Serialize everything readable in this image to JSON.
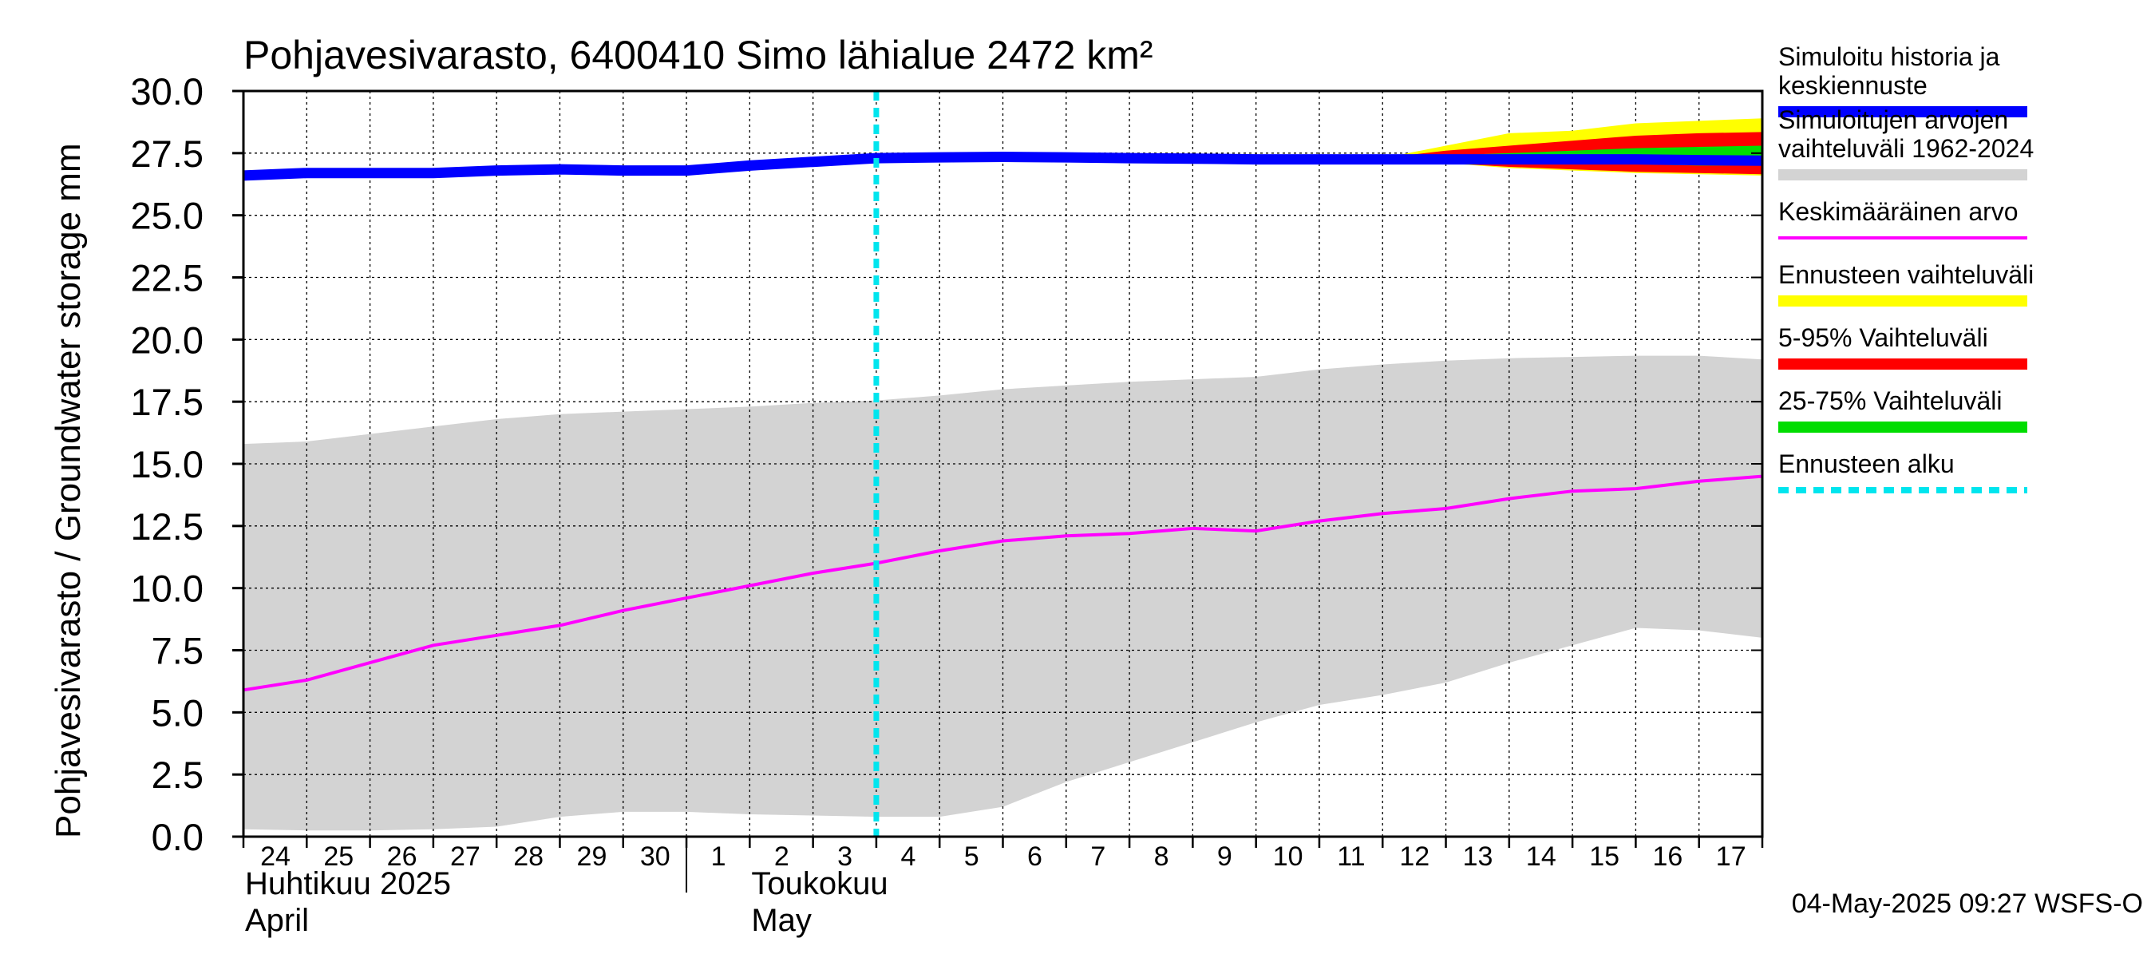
{
  "chart_data": {
    "type": "area",
    "title": "Pohjavesivarasto, 6400410 Simo lähialue 2472 km²",
    "ylabel": "Pohjavesivarasto / Groundwater storage   mm",
    "ylim": [
      0,
      30
    ],
    "ytick_values": [
      0,
      2.5,
      5,
      7.5,
      10,
      12.5,
      15,
      17.5,
      20,
      22.5,
      25,
      27.5,
      30
    ],
    "ytick_labels": [
      "0.0",
      "2.5",
      "5.0",
      "7.5",
      "10.0",
      "12.5",
      "15.0",
      "17.5",
      "20.0",
      "22.5",
      "25.0",
      "27.5",
      "30.0"
    ],
    "xlim": [
      0,
      24
    ],
    "x_day_labels": [
      "24",
      "25",
      "26",
      "27",
      "28",
      "29",
      "30",
      "1",
      "2",
      "3",
      "4",
      "5",
      "6",
      "7",
      "8",
      "9",
      "10",
      "11",
      "12",
      "13",
      "14",
      "15",
      "16",
      "17"
    ],
    "month_labels": [
      {
        "fi": "Huhtikuu  2025",
        "en": "April",
        "x": 0
      },
      {
        "fi": "Toukokuu",
        "en": "May",
        "x": 8
      }
    ],
    "month_separator_x": 7,
    "forecast_start_x": 10,
    "history_range": {
      "x": [
        0,
        1,
        2,
        3,
        4,
        5,
        6,
        7,
        8,
        9,
        10,
        11,
        12,
        13,
        14,
        15,
        16,
        17,
        18,
        19,
        20,
        21,
        22,
        23,
        24
      ],
      "upper": [
        15.8,
        15.9,
        16.2,
        16.5,
        16.8,
        17.0,
        17.1,
        17.2,
        17.3,
        17.45,
        17.55,
        17.75,
        18.0,
        18.15,
        18.3,
        18.4,
        18.5,
        18.8,
        19.0,
        19.15,
        19.25,
        19.3,
        19.35,
        19.35,
        19.2
      ],
      "lower": [
        0.3,
        0.25,
        0.25,
        0.3,
        0.4,
        0.8,
        1.0,
        1.0,
        0.9,
        0.85,
        0.8,
        0.8,
        1.2,
        2.2,
        3.0,
        3.8,
        4.6,
        5.3,
        5.7,
        6.2,
        7.0,
        7.7,
        8.4,
        8.3,
        8.0
      ]
    },
    "mean_value": {
      "x": [
        0,
        1,
        2,
        3,
        4,
        5,
        6,
        7,
        8,
        9,
        10,
        11,
        12,
        13,
        14,
        15,
        16,
        17,
        18,
        19,
        20,
        21,
        22,
        23,
        24
      ],
      "values": [
        5.9,
        6.3,
        7.0,
        7.7,
        8.1,
        8.5,
        9.1,
        9.6,
        10.1,
        10.6,
        11.0,
        11.5,
        11.9,
        12.1,
        12.2,
        12.4,
        12.3,
        12.7,
        13.0,
        13.2,
        13.6,
        13.9,
        14.0,
        14.3,
        14.5
      ]
    },
    "forecast_bands": {
      "x": [
        18,
        19,
        20,
        21,
        22,
        23,
        24
      ],
      "yellow_upper": [
        27.3,
        27.8,
        28.3,
        28.4,
        28.7,
        28.8,
        28.9
      ],
      "yellow_lower": [
        27.25,
        27.1,
        26.9,
        26.8,
        26.7,
        26.65,
        26.6
      ],
      "red_upper": [
        27.3,
        27.6,
        27.8,
        28.0,
        28.2,
        28.3,
        28.35
      ],
      "red_lower": [
        27.25,
        27.1,
        26.95,
        26.85,
        26.75,
        26.7,
        26.65
      ],
      "green_upper": [
        27.3,
        27.4,
        27.5,
        27.6,
        27.7,
        27.75,
        27.8
      ],
      "green_lower": [
        27.25,
        27.2,
        27.15,
        27.1,
        27.05,
        27.0,
        27.0
      ]
    },
    "simulated_history": {
      "x": [
        0,
        1,
        2,
        3,
        4,
        5,
        6,
        7,
        8,
        9,
        10,
        11,
        12,
        13,
        14,
        15,
        16,
        17,
        18,
        19,
        20,
        21,
        22,
        23,
        24
      ],
      "values": [
        26.6,
        26.7,
        26.7,
        26.7,
        26.8,
        26.85,
        26.8,
        26.8,
        27.0,
        27.15,
        27.3,
        27.33,
        27.35,
        27.33,
        27.3,
        27.28,
        27.25,
        27.25,
        27.25,
        27.25,
        27.25,
        27.25,
        27.25,
        27.22,
        27.2
      ]
    },
    "legend": [
      {
        "label": "Simuloitu historia ja keskiennuste",
        "color": "#0000ff",
        "style": "thick"
      },
      {
        "label": "Simuloitujen arvojen vaihteluväli 1962-2024",
        "color": "#d3d3d3",
        "style": "band"
      },
      {
        "label": "Keskimääräinen arvo",
        "color": "#ff00ff",
        "style": "thin"
      },
      {
        "label": "Ennusteen vaihteluväli",
        "color": "#ffff00",
        "style": "band"
      },
      {
        "label": "5-95% Vaihteluväli",
        "color": "#ff0000",
        "style": "band"
      },
      {
        "label": "25-75% Vaihteluväli",
        "color": "#00dd00",
        "style": "band"
      },
      {
        "label": "Ennusteen alku",
        "color": "#00e5ee",
        "style": "dashed"
      }
    ],
    "footer": "04-May-2025 09:27 WSFS-O",
    "colors": {
      "history_band": "#d3d3d3",
      "mean": "#ff00ff",
      "simulated": "#0000ff",
      "yellow": "#ffff00",
      "red": "#ff0000",
      "green": "#00dd00",
      "forecast_start": "#00e5ee"
    }
  }
}
